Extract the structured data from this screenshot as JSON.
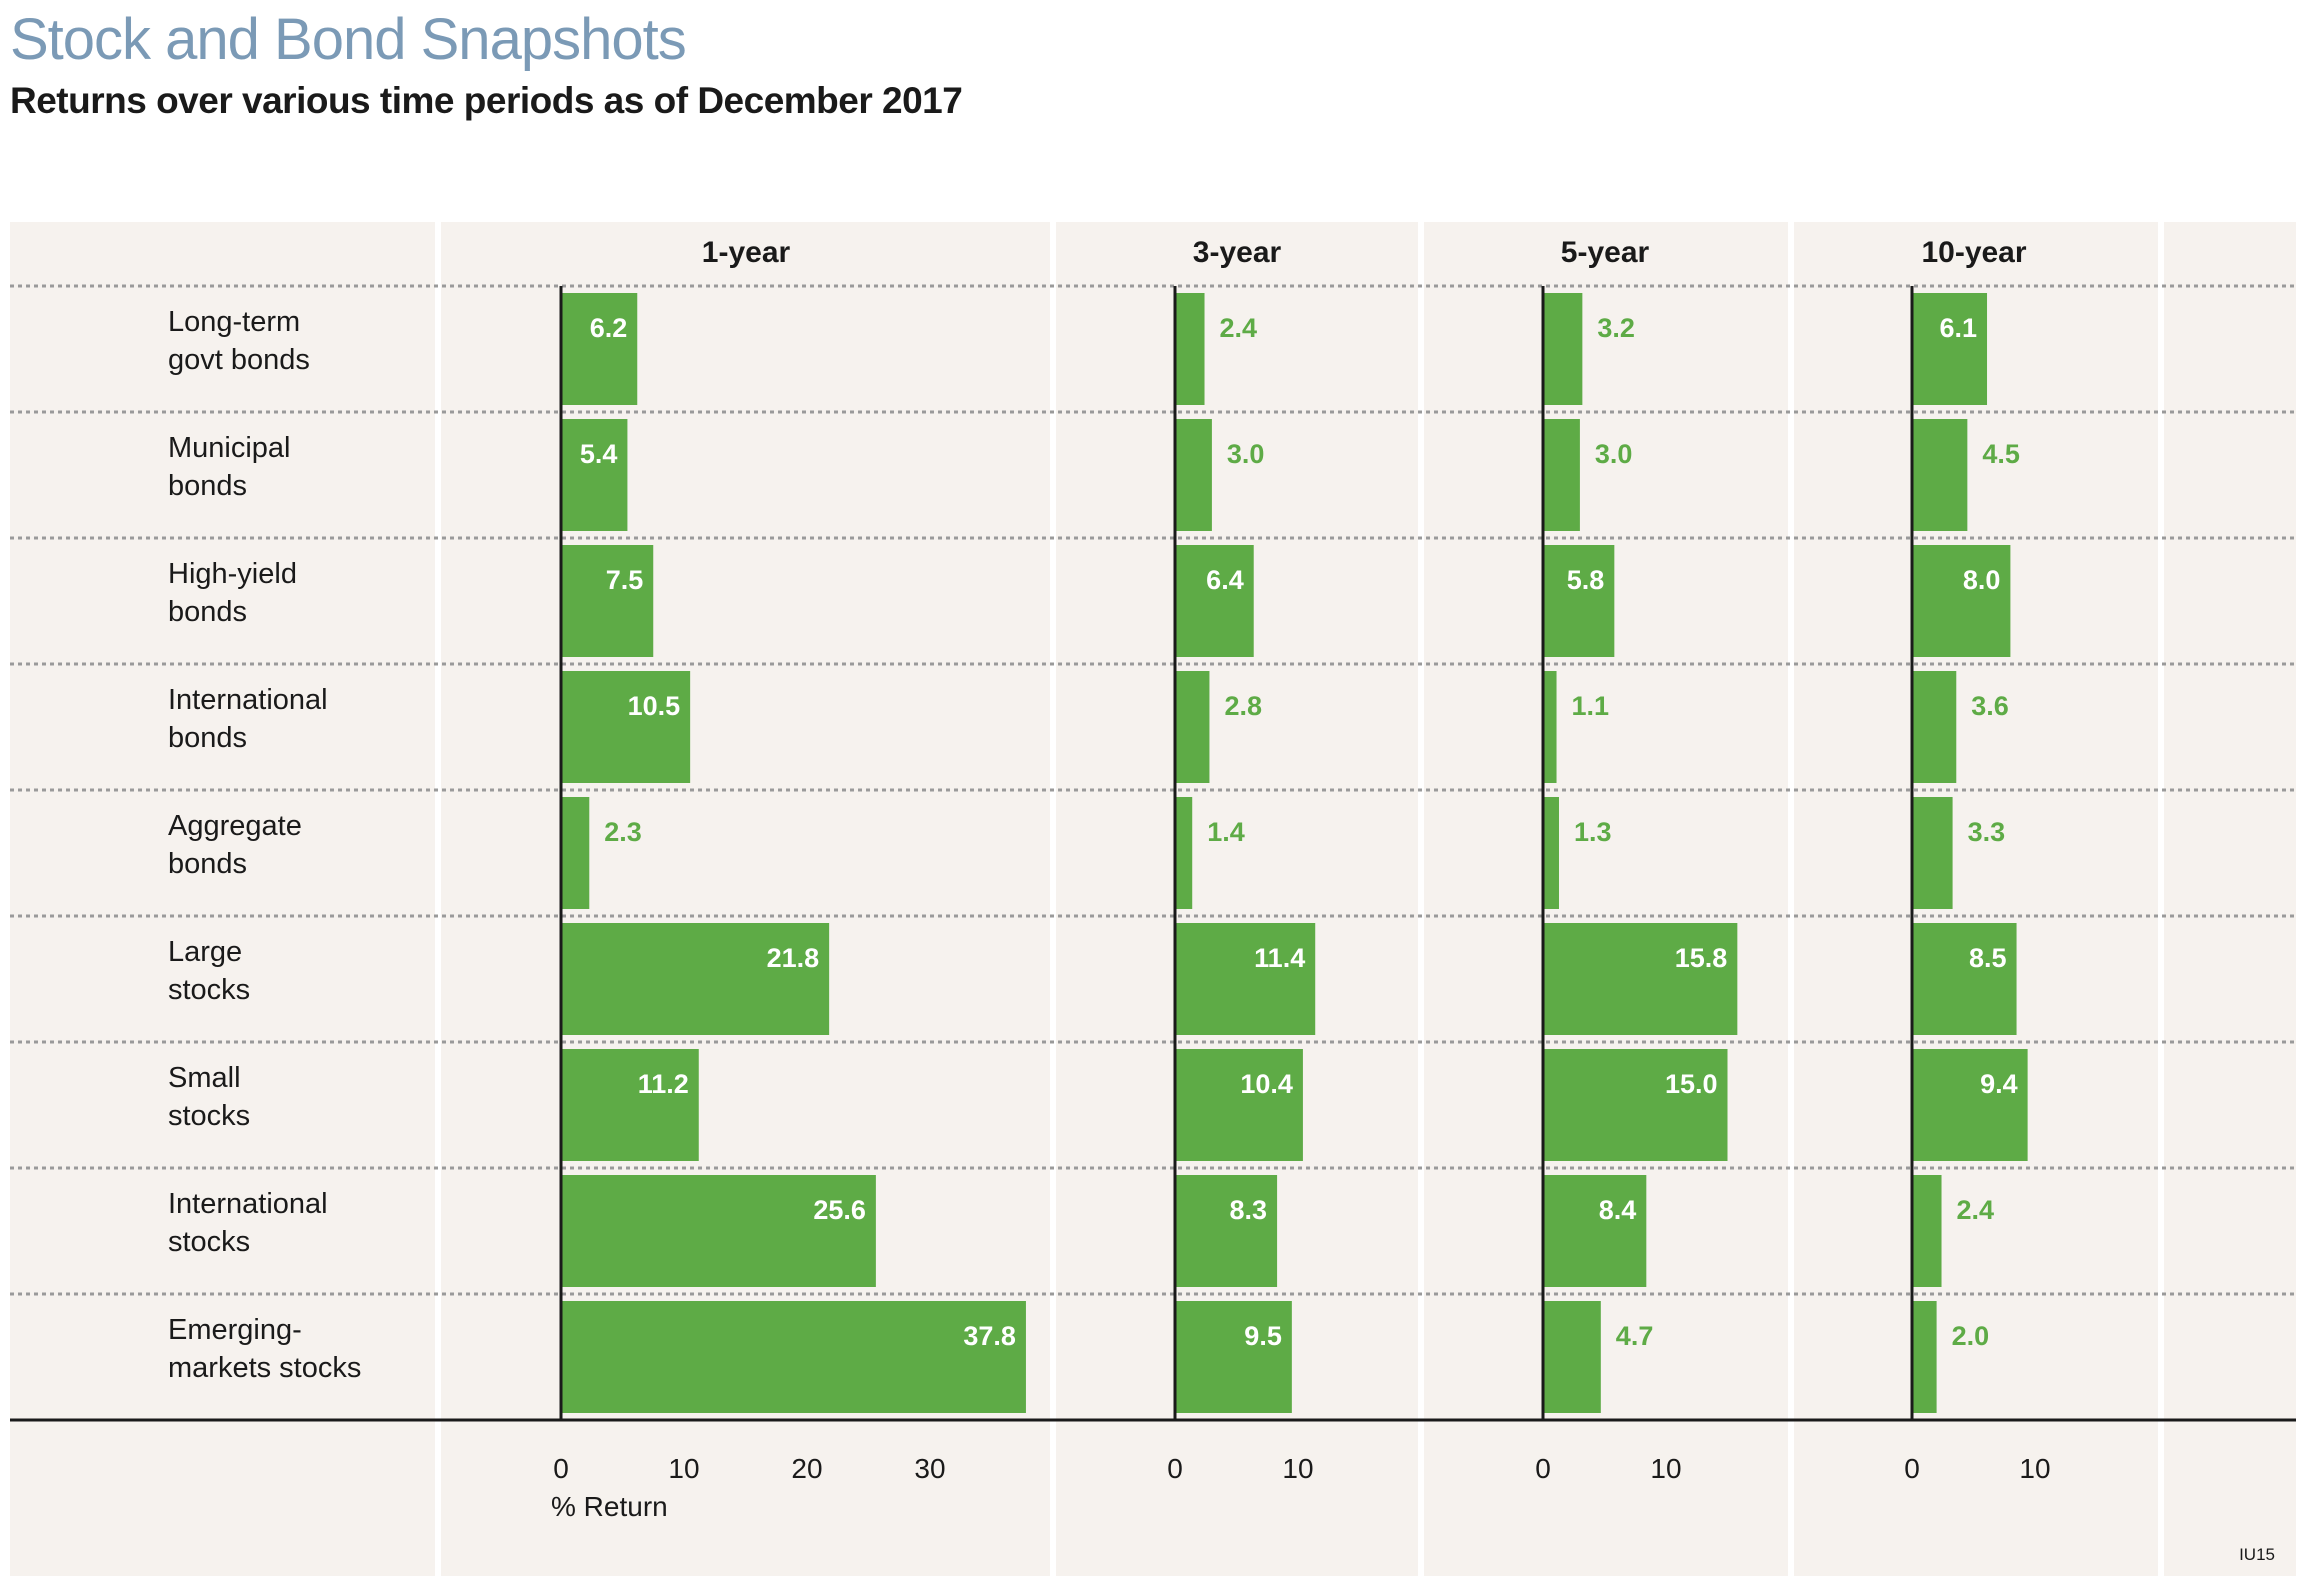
{
  "header": {
    "title": "Stock and Bond Snapshots",
    "subtitle": "Returns over various time periods as of December 2017"
  },
  "footnote": "IU15",
  "colors": {
    "bar": "#5eab46",
    "panel_bg": "#f6f2ee",
    "label_in": "#ffffff",
    "label_out": "#5eab46",
    "text": "#1a1a1a",
    "title": "#7b9ab6"
  },
  "chart_data": {
    "type": "bar",
    "orientation": "horizontal",
    "title": "Stock and Bond Snapshots",
    "subtitle": "Returns over various time periods as of December 2017",
    "xlabel": "% Return",
    "categories": [
      "Long-term govt bonds",
      "Municipal bonds",
      "High-yield bonds",
      "International bonds",
      "Aggregate bonds",
      "Large stocks",
      "Small stocks",
      "International stocks",
      "Emerging-markets stocks"
    ],
    "category_lines": [
      [
        "Long-term",
        "govt bonds"
      ],
      [
        "Municipal",
        "bonds"
      ],
      [
        "High-yield",
        "bonds"
      ],
      [
        "International",
        "bonds"
      ],
      [
        "Aggregate",
        "bonds"
      ],
      [
        "Large",
        "stocks"
      ],
      [
        "Small",
        "stocks"
      ],
      [
        "International",
        "stocks"
      ],
      [
        "Emerging-",
        "markets stocks"
      ]
    ],
    "series": [
      {
        "name": "1-year",
        "ticks": [
          0,
          10,
          20,
          30
        ],
        "values": [
          6.2,
          5.4,
          7.5,
          10.5,
          2.3,
          21.8,
          11.2,
          25.6,
          37.8
        ]
      },
      {
        "name": "3-year",
        "ticks": [
          0,
          10
        ],
        "values": [
          2.4,
          3.0,
          6.4,
          2.8,
          1.4,
          11.4,
          10.4,
          8.3,
          9.5
        ]
      },
      {
        "name": "5-year",
        "ticks": [
          0,
          10
        ],
        "values": [
          3.2,
          3.0,
          5.8,
          1.1,
          1.3,
          15.8,
          15.0,
          8.4,
          4.7
        ]
      },
      {
        "name": "10-year",
        "ticks": [
          0,
          10
        ],
        "values": [
          6.1,
          4.5,
          8.0,
          3.6,
          3.3,
          8.5,
          9.4,
          2.4,
          2.0
        ]
      }
    ],
    "labels": [
      "6.2",
      "5.4",
      "7.5",
      "10.5",
      "2.3",
      "21.8",
      "11.2",
      "25.6",
      "37.8",
      "2.4",
      "3.0",
      "6.4",
      "2.8",
      "1.4",
      "11.4",
      "10.4",
      "8.3",
      "9.5",
      "3.2",
      "3.0",
      "5.8",
      "1.1",
      "1.3",
      "15.8",
      "15.0",
      "8.4",
      "4.7",
      "6.1",
      "4.5",
      "8.0",
      "3.6",
      "3.3",
      "8.5",
      "9.4",
      "2.4",
      "2.0"
    ]
  }
}
